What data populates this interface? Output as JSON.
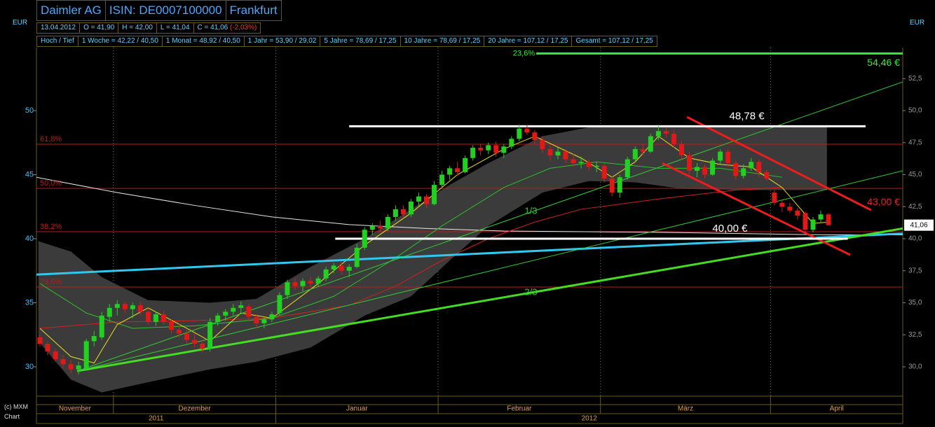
{
  "header": {
    "name": "Daimler AG",
    "isin": "ISIN: DE0007100000",
    "exchange": "Frankfurt"
  },
  "quote": [
    "13.04.2012",
    "O = 41,90",
    "H = 42,00",
    "L = 41,04",
    "C = 41,06",
    "(-2,03%)"
  ],
  "ranges": [
    "Hoch / Tief",
    "1 Woche = 42,22 / 40,50",
    "1 Monat = 48,92 / 40,50",
    "1 Jahr = 53,90 / 29,02",
    "5 Jahre = 78,69 / 17,25",
    "10 Jahre = 78,69 / 17,25",
    "20 Jahre = 107,12 / 17,25",
    "Gesamt = 107,12 / 17,25"
  ],
  "credit": [
    "(c) MXM",
    "Chart"
  ],
  "chart_data": {
    "type": "candlestick",
    "currency_left": "EUR",
    "currency_right": "EUR",
    "ylim": [
      27.76,
      54.92
    ],
    "yticks": [
      30,
      35,
      40,
      45,
      50
    ],
    "y2lim": [
      27.76,
      54.92
    ],
    "y2ticks": [
      {
        "value": 30,
        "label": "30,0"
      },
      {
        "value": 32.5,
        "label": "32,5"
      },
      {
        "value": 35,
        "label": "35,0"
      },
      {
        "value": 37.5,
        "label": "37,5"
      },
      {
        "value": 40,
        "label": "40,0"
      },
      {
        "value": 42.5,
        "label": "42,5"
      },
      {
        "value": 45,
        "label": "45,0"
      },
      {
        "value": 47.5,
        "label": "47,5"
      },
      {
        "value": 50,
        "label": "50,0"
      },
      {
        "value": 52.5,
        "label": "52,5"
      }
    ],
    "categories": [
      "November",
      null,
      null,
      null,
      null,
      null,
      null,
      null,
      null,
      null,
      "Dezember",
      null,
      null,
      null,
      null,
      null,
      null,
      null,
      null,
      null,
      null,
      null,
      null,
      null,
      null,
      null,
      null,
      null,
      null,
      null,
      null,
      "Januar",
      null,
      null,
      null,
      null,
      null,
      null,
      null,
      null,
      null,
      null,
      null,
      null,
      null,
      null,
      null,
      null,
      null,
      null,
      null,
      null,
      "Februar",
      null,
      null,
      null,
      null,
      null,
      null,
      null,
      null,
      null,
      null,
      null,
      null,
      null,
      null,
      null,
      null,
      null,
      null,
      null,
      null,
      "März",
      null,
      null,
      null,
      null,
      null,
      null,
      null,
      null,
      null,
      null,
      null,
      null,
      null,
      null,
      null,
      null,
      null,
      null,
      null,
      null,
      null,
      "April",
      null,
      null,
      null,
      null,
      null,
      null,
      null
    ],
    "years": [
      "2011",
      "2012"
    ],
    "series": [
      {
        "color_up": "#22d022",
        "color_down": "#e01818",
        "open": [
          32.3,
          31.8,
          31.2,
          30.6,
          30.2,
          29.8,
          29.9,
          32.0,
          32.3,
          33.9,
          34.6,
          34.9,
          34.5,
          34.8,
          34.3,
          33.5,
          34.1,
          33.5,
          32.9,
          32.6,
          32.1,
          31.8,
          31.4,
          33.5,
          34.0,
          34.3,
          34.6,
          34.7,
          33.9,
          33.4,
          33.7,
          34.2,
          35.6,
          36.6,
          36.3,
          36.7,
          36.5,
          36.9,
          37.6,
          37.9,
          37.5,
          37.8,
          39.3,
          40.7,
          41.0,
          40.8,
          41.7,
          42.3,
          41.9,
          42.9,
          43.3,
          42.7,
          44.2,
          45.0,
          45.5,
          45.2,
          46.3,
          47.1,
          46.9,
          47.3,
          46.7,
          47.2,
          47.8,
          48.6,
          48.3,
          47.7,
          47.0,
          46.5,
          46.8,
          46.2,
          45.9,
          46.0,
          45.6,
          45.7,
          44.7,
          43.6,
          44.8,
          46.2,
          47.0,
          46.8,
          48.0,
          48.4,
          48.2,
          47.4,
          46.5,
          45.3,
          45.6,
          45.0,
          46.1,
          46.8,
          45.9,
          44.9,
          45.5,
          46.0,
          45.2,
          43.6,
          42.8,
          42.5,
          42.2,
          42.0,
          40.7,
          41.5,
          41.9
        ],
        "high": [
          32.5,
          32.0,
          31.4,
          30.9,
          30.5,
          30.4,
          32.2,
          32.8,
          34.3,
          34.9,
          35.2,
          35.1,
          35.0,
          35.1,
          34.6,
          34.3,
          34.4,
          33.7,
          33.4,
          32.9,
          32.6,
          32.1,
          33.8,
          34.2,
          34.5,
          34.9,
          35.1,
          34.9,
          34.1,
          33.9,
          34.3,
          35.8,
          36.8,
          36.9,
          36.9,
          37.0,
          37.1,
          37.8,
          38.1,
          38.2,
          38.0,
          39.6,
          40.9,
          41.2,
          41.4,
          41.9,
          42.6,
          42.6,
          43.1,
          43.6,
          43.5,
          44.5,
          45.3,
          45.7,
          46.0,
          46.5,
          47.3,
          47.4,
          47.5,
          47.6,
          47.4,
          48.0,
          48.9,
          48.9,
          48.5,
          48.0,
          47.3,
          47.1,
          47.0,
          46.6,
          46.4,
          46.2,
          46.0,
          45.9,
          44.9,
          45.0,
          46.4,
          47.2,
          47.4,
          48.2,
          48.8,
          48.7,
          48.5,
          47.6,
          46.8,
          45.9,
          45.8,
          46.3,
          47.0,
          47.0,
          46.1,
          45.8,
          46.3,
          46.2,
          45.4,
          43.8,
          43.0,
          42.8,
          42.4,
          42.1,
          41.7,
          42.2,
          42.0
        ],
        "low": [
          31.6,
          30.9,
          30.4,
          29.9,
          29.5,
          29.4,
          29.8,
          31.6,
          32.1,
          33.5,
          34.0,
          34.2,
          33.8,
          34.0,
          33.3,
          33.2,
          33.3,
          32.6,
          32.3,
          31.8,
          31.5,
          31.1,
          31.2,
          33.2,
          33.6,
          34.0,
          34.2,
          33.6,
          33.0,
          33.0,
          33.5,
          34.0,
          35.3,
          36.0,
          35.9,
          36.2,
          36.3,
          36.7,
          37.3,
          37.2,
          37.0,
          37.7,
          39.1,
          40.3,
          40.5,
          40.6,
          41.4,
          41.6,
          41.7,
          42.5,
          42.4,
          42.6,
          44.0,
          44.6,
          44.9,
          45.1,
          46.1,
          46.5,
          46.6,
          46.4,
          46.3,
          47.0,
          47.6,
          48.1,
          47.4,
          46.7,
          46.1,
          46.2,
          45.9,
          45.6,
          45.5,
          45.3,
          45.2,
          44.4,
          43.3,
          43.2,
          44.6,
          46.0,
          46.5,
          46.7,
          47.7,
          47.9,
          47.1,
          46.2,
          45.0,
          44.8,
          44.7,
          44.9,
          45.8,
          45.6,
          44.6,
          44.7,
          45.3,
          44.8,
          44.5,
          42.6,
          42.1,
          42.0,
          41.5,
          40.5,
          40.5,
          41.3,
          41.04
        ],
        "close": [
          31.8,
          31.2,
          30.6,
          30.2,
          29.8,
          30.1,
          32.0,
          32.4,
          34.0,
          34.6,
          34.9,
          34.5,
          34.8,
          34.3,
          33.5,
          34.1,
          33.5,
          32.9,
          32.6,
          32.1,
          31.8,
          31.4,
          33.5,
          34.0,
          34.3,
          34.6,
          34.8,
          33.9,
          33.4,
          33.7,
          34.1,
          35.6,
          36.6,
          36.3,
          36.7,
          36.5,
          36.9,
          37.6,
          37.9,
          37.5,
          37.8,
          39.3,
          40.7,
          41.0,
          40.8,
          41.7,
          42.3,
          41.9,
          42.9,
          43.3,
          42.7,
          44.2,
          45.0,
          45.5,
          45.2,
          46.3,
          47.1,
          46.9,
          47.3,
          46.7,
          47.2,
          47.8,
          48.6,
          48.3,
          47.7,
          47.0,
          46.5,
          46.8,
          46.2,
          45.9,
          46.0,
          45.6,
          45.7,
          44.7,
          43.6,
          44.8,
          46.2,
          47.0,
          46.8,
          48.0,
          48.4,
          48.2,
          47.4,
          46.5,
          45.3,
          45.6,
          45.0,
          46.1,
          46.8,
          45.9,
          44.9,
          45.5,
          46.0,
          45.2,
          44.7,
          42.8,
          42.5,
          42.2,
          41.8,
          40.7,
          41.5,
          41.9,
          41.06
        ]
      }
    ],
    "bands": [
      {
        "color": "#3b3b3b",
        "x": [
          -0.2,
          4,
          8,
          14,
          22,
          28,
          35,
          42,
          48,
          53,
          58,
          65,
          71,
          77,
          83,
          90,
          95,
          101.8
        ],
        "upper": [
          39.8,
          39.0,
          37.0,
          35.2,
          35.0,
          35.3,
          37.8,
          40.0,
          42.3,
          44.2,
          45.9,
          48.0,
          48.7,
          48.8,
          48.8,
          48.8,
          48.8,
          48.8
        ],
        "lower": [
          32.0,
          29.0,
          28.0,
          28.8,
          29.8,
          30.4,
          31.5,
          34.0,
          35.5,
          38.3,
          41.0,
          43.6,
          44.5,
          44.4,
          43.9,
          43.8,
          43.8,
          43.8
        ]
      }
    ],
    "lines": [
      {
        "color": "#e8e8e8",
        "width": 1,
        "x": [
          -0.5,
          10,
          20,
          30,
          40,
          50,
          60,
          80,
          102,
          111.6
        ],
        "values": [
          44.8,
          43.6,
          42.6,
          41.7,
          41.1,
          40.8,
          40.6,
          40.5,
          40.3,
          40.3
        ]
      },
      {
        "color": "#d42020",
        "width": 1,
        "x": [
          0,
          10,
          20,
          30,
          40,
          46,
          52,
          58,
          64,
          70,
          80,
          90,
          96
        ],
        "values": [
          33.0,
          33.5,
          33.6,
          33.8,
          34.8,
          36.3,
          38.3,
          40.0,
          41.3,
          42.3,
          43.1,
          43.8,
          44.0
        ]
      },
      {
        "color": "#2cc02c",
        "width": 1,
        "x": [
          0,
          6,
          12,
          20,
          30,
          38,
          46,
          52,
          60,
          66,
          72,
          80,
          88,
          96
        ],
        "values": [
          36.5,
          34.2,
          33.0,
          33.2,
          33.8,
          35.5,
          38.5,
          41.0,
          44.0,
          45.5,
          46.0,
          45.5,
          45.5,
          44.8
        ]
      },
      {
        "color": "#e8e020",
        "width": 1,
        "x": [
          0,
          4,
          7,
          10,
          14,
          19,
          22,
          26,
          30,
          36,
          42,
          48,
          54,
          60,
          64,
          70,
          74,
          77,
          80,
          84,
          88,
          92,
          96,
          100,
          102
        ],
        "values": [
          33.0,
          30.8,
          30.3,
          33.3,
          34.6,
          33.0,
          32.0,
          34.2,
          33.8,
          36.5,
          39.5,
          42.0,
          45.0,
          47.0,
          48.0,
          46.3,
          44.8,
          46.0,
          48.0,
          46.3,
          45.8,
          45.6,
          44.0,
          41.2,
          41.3
        ]
      },
      {
        "color": "#30c8f0",
        "width": 3,
        "x": [
          -0.5,
          111.6
        ],
        "values": [
          37.2,
          40.4
        ]
      },
      {
        "color": "#44dd22",
        "width": 3,
        "x": [
          4.8,
          111.6
        ],
        "values": [
          29.67,
          40.8
        ]
      },
      {
        "color": "#33cc33",
        "width": 1,
        "x": [
          4.8,
          111.6
        ],
        "values": [
          29.67,
          52.24
        ]
      },
      {
        "color": "#33cc33",
        "width": 1,
        "x": [
          4.8,
          111.6
        ],
        "values": [
          29.67,
          45.3
        ]
      },
      {
        "color": "#ee1c1c",
        "width": 3,
        "x": [
          83.7,
          107.5
        ],
        "values": [
          49.5,
          42.24
        ]
      },
      {
        "color": "#ee1c1c",
        "width": 3,
        "x": [
          80.5,
          104.8
        ],
        "values": [
          45.9,
          38.74
        ]
      }
    ],
    "levels": [
      {
        "value": 54.46,
        "label": "23,6%",
        "color": "#33ee33",
        "width": 3,
        "from": 64.2
      },
      {
        "value": 47.38,
        "label": "61,8%",
        "color": "#c01818",
        "width": 1,
        "from": -0.5
      },
      {
        "value": 43.93,
        "label": "50,0%",
        "color": "#c01818",
        "width": 1,
        "from": -0.5
      },
      {
        "value": 40.55,
        "label": "38,2%",
        "color": "#c01818",
        "width": 1,
        "from": -0.5
      },
      {
        "value": 36.23,
        "label": "23,6%",
        "color": "#c01818",
        "width": 1,
        "from": -0.5
      }
    ],
    "price_lines": [
      {
        "value": 48.78,
        "label": "48,78 €",
        "color": "#ffffff",
        "x": [
          40.0,
          106.8
        ]
      },
      {
        "value": 40.0,
        "label": "40,00 €",
        "color": "#ffffff",
        "x": [
          38.2,
          104.5
        ]
      }
    ],
    "price_labels": [
      {
        "value": 54.46,
        "label": "54,46 €",
        "color": "#33ee33"
      },
      {
        "value": 43.0,
        "label": "43,00 €",
        "color": "#ee2020"
      }
    ],
    "annotations": [
      {
        "text": "1/3",
        "x": 63.5,
        "value": 42.13,
        "color": "#33cc33"
      },
      {
        "text": "2/3",
        "x": 63.5,
        "value": 35.79,
        "color": "#33cc33"
      }
    ],
    "last_price": {
      "value": 41.06,
      "label": "41,06"
    }
  }
}
